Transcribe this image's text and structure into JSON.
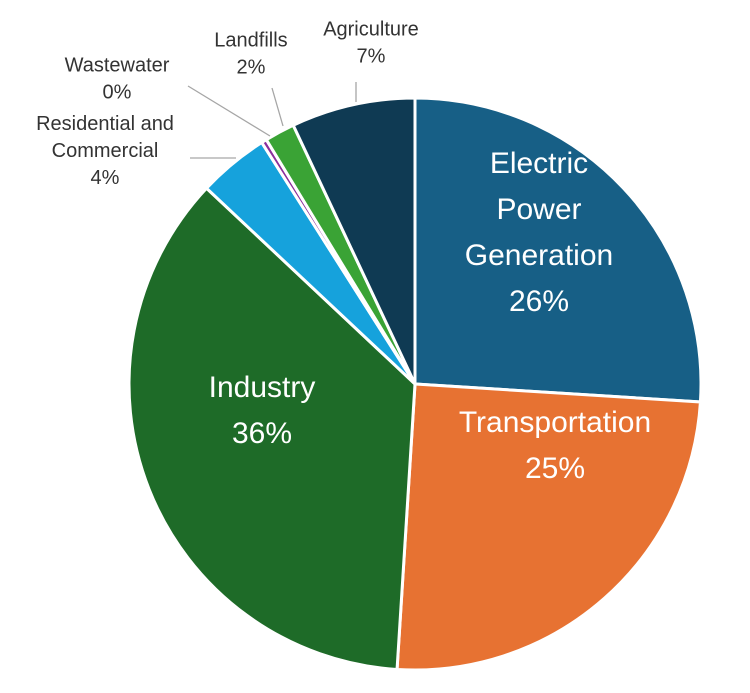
{
  "chart_data": {
    "type": "pie",
    "title": "",
    "start_angle_deg": 0,
    "direction": "clockwise",
    "slices": [
      {
        "label_lines": [
          "Electric",
          "Power",
          "Generation"
        ],
        "value": 26,
        "value_label": "26%",
        "color": "#175f86",
        "label_position": "inside"
      },
      {
        "label_lines": [
          "Transportation"
        ],
        "value": 25,
        "value_label": "25%",
        "color": "#e77232",
        "label_position": "inside"
      },
      {
        "label_lines": [
          "Industry"
        ],
        "value": 36,
        "value_label": "36%",
        "color": "#1e6b28",
        "label_position": "inside"
      },
      {
        "label_lines": [
          "Residential and",
          "Commercial"
        ],
        "value": 4,
        "value_label": "4%",
        "color": "#16a2dc",
        "label_position": "outside-leader"
      },
      {
        "label_lines": [
          "Wastewater"
        ],
        "value": 0.3,
        "value_label": "0%",
        "color": "#8a2f9b",
        "label_position": "outside-leader"
      },
      {
        "label_lines": [
          "Landfills"
        ],
        "value": 1.7,
        "value_label": "2%",
        "color": "#3aa335",
        "label_position": "outside-leader"
      },
      {
        "label_lines": [
          "Agriculture"
        ],
        "value": 7,
        "value_label": "7%",
        "color": "#0f3a53",
        "label_position": "outside-leader"
      }
    ]
  }
}
